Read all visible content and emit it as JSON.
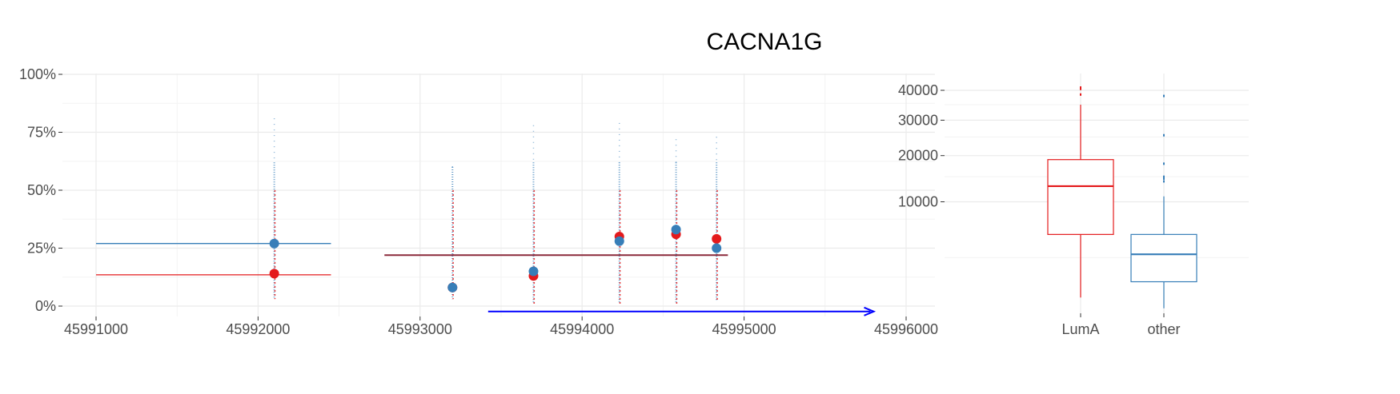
{
  "title": "CACNA1G",
  "colors": {
    "LumA": "#e41a1c",
    "other": "#377eb8",
    "combined": "#8b2a3a",
    "arrow": "#0000ff"
  },
  "chart_data": [
    {
      "type": "scatter",
      "title": "CACNA1G",
      "xlim": [
        45991000,
        45996000
      ],
      "ylim": [
        0,
        1
      ],
      "x_ticks": [
        45991000,
        45992000,
        45993000,
        45994000,
        45995000,
        45996000
      ],
      "x_tick_labels": [
        "45991000",
        "45992000",
        "45993000",
        "45994000",
        "45995000",
        "45996000"
      ],
      "y_ticks": [
        0,
        0.25,
        0.5,
        0.75,
        1.0
      ],
      "y_tick_labels": [
        "0%",
        "25%",
        "50%",
        "75%",
        "100%"
      ],
      "grid": true,
      "series": [
        {
          "group": "LumA",
          "x": [
            45992100,
            45993200,
            45993700,
            45994230,
            45994580,
            45994830
          ],
          "y": [
            0.14,
            0.08,
            0.13,
            0.3,
            0.31,
            0.29
          ]
        },
        {
          "group": "other",
          "x": [
            45992100,
            45993200,
            45993700,
            45994230,
            45994580,
            45994830
          ],
          "y": [
            0.27,
            0.08,
            0.15,
            0.28,
            0.33,
            0.25
          ]
        }
      ],
      "spread": [
        {
          "x": 45992100,
          "min": 0.03,
          "max": 0.81
        },
        {
          "x": 45993200,
          "min": 0.03,
          "max": 0.6
        },
        {
          "x": 45993700,
          "min": 0.01,
          "max": 0.78
        },
        {
          "x": 45994230,
          "min": 0.01,
          "max": 0.79
        },
        {
          "x": 45994580,
          "min": 0.01,
          "max": 0.72
        },
        {
          "x": 45994830,
          "min": 0.02,
          "max": 0.73
        }
      ],
      "segments": [
        {
          "group": "other",
          "x0": 45991000,
          "x1": 45992450,
          "y": 0.27
        },
        {
          "group": "LumA",
          "x0": 45991000,
          "x1": 45992450,
          "y": 0.135
        },
        {
          "group": "combined",
          "x0": 45992780,
          "x1": 45994900,
          "y": 0.22
        }
      ],
      "arrow": {
        "x0": 45993420,
        "x1": 45995800,
        "y": -0.02
      }
    },
    {
      "type": "box",
      "categories": [
        "LumA",
        "other"
      ],
      "y_ticks": [
        10000,
        20000,
        30000,
        40000
      ],
      "y_tick_labels": [
        "10000",
        "20000",
        "30000",
        "40000"
      ],
      "ylim": [
        0,
        42000
      ],
      "scale": "sqrt",
      "boxes": [
        {
          "name": "LumA",
          "min": 200,
          "q1": 5000,
          "median": 13000,
          "q3": 19000,
          "max": 35000,
          "outliers": [
            38500,
            40500,
            41000
          ]
        },
        {
          "name": "other",
          "min": 20,
          "q1": 800,
          "median": 2800,
          "q3": 5000,
          "max": 11000,
          "outliers": [
            14000,
            14600,
            15000,
            18000,
            25500,
            38000
          ]
        }
      ]
    }
  ]
}
